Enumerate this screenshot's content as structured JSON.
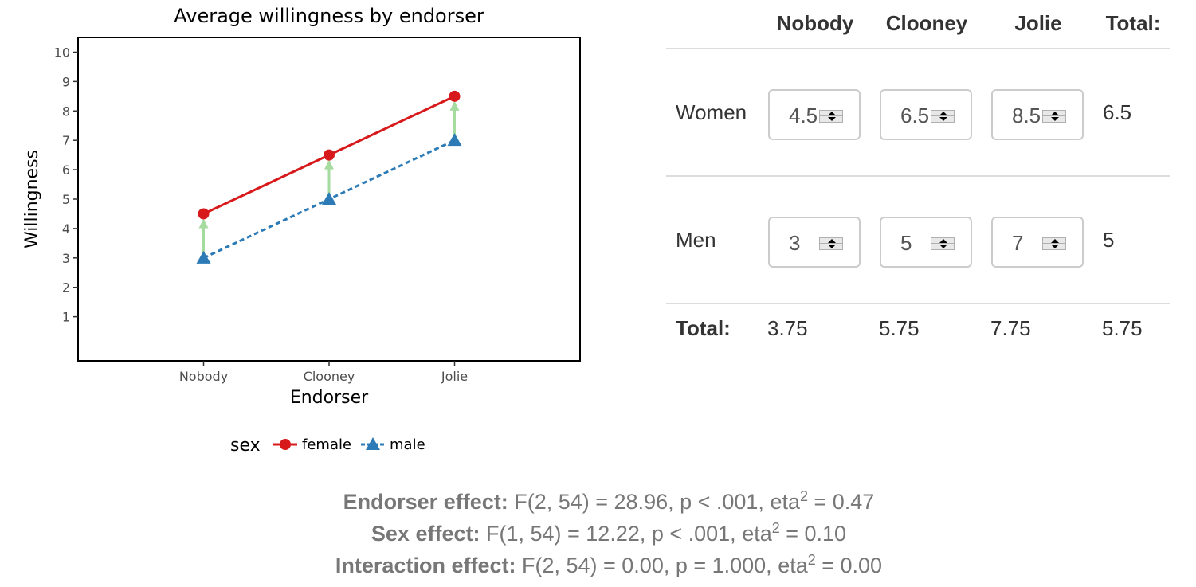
{
  "chart_data": {
    "type": "line",
    "title": "Average willingness by endorser",
    "xlabel": "Endorser",
    "ylabel": "Willingness",
    "categories": [
      "Nobody",
      "Clooney",
      "Jolie"
    ],
    "yticks": [
      1,
      2,
      3,
      4,
      5,
      6,
      7,
      8,
      9,
      10
    ],
    "ylim": [
      -0.5,
      10.5
    ],
    "legend_title": "sex",
    "legend_position": "bottom",
    "grid": false,
    "series": [
      {
        "name": "female",
        "values": [
          4.5,
          6.5,
          8.5
        ],
        "color": "#d7191c",
        "marker": "circle",
        "line": "solid"
      },
      {
        "name": "male",
        "values": [
          3,
          5,
          7
        ],
        "color": "#2c7bb6",
        "marker": "triangle",
        "line": "dashed"
      }
    ],
    "arrow_color": "#a6dba0"
  },
  "table": {
    "columns": [
      "Nobody",
      "Clooney",
      "Jolie",
      "Total:"
    ],
    "rows": [
      {
        "label": "Women",
        "values": [
          "4.5",
          "6.5",
          "8.5"
        ],
        "total": "6.5"
      },
      {
        "label": "Men",
        "values": [
          "3",
          "5",
          "7"
        ],
        "total": "5"
      }
    ],
    "total_label": "Total:",
    "col_totals": [
      "3.75",
      "5.75",
      "7.75",
      "5.75"
    ]
  },
  "effects": [
    {
      "label": "Endorser effect:",
      "pre": "F(2, 54) = 28.96, p < .001, eta",
      "sup": "2",
      "post": " = 0.47"
    },
    {
      "label": "Sex effect:",
      "pre": "F(1, 54) = 12.22, p < .001, eta",
      "sup": "2",
      "post": " = 0.10"
    },
    {
      "label": "Interaction effect:",
      "pre": "F(2, 54) = 0.00, p = 1.000, eta",
      "sup": "2",
      "post": " = 0.00"
    }
  ]
}
